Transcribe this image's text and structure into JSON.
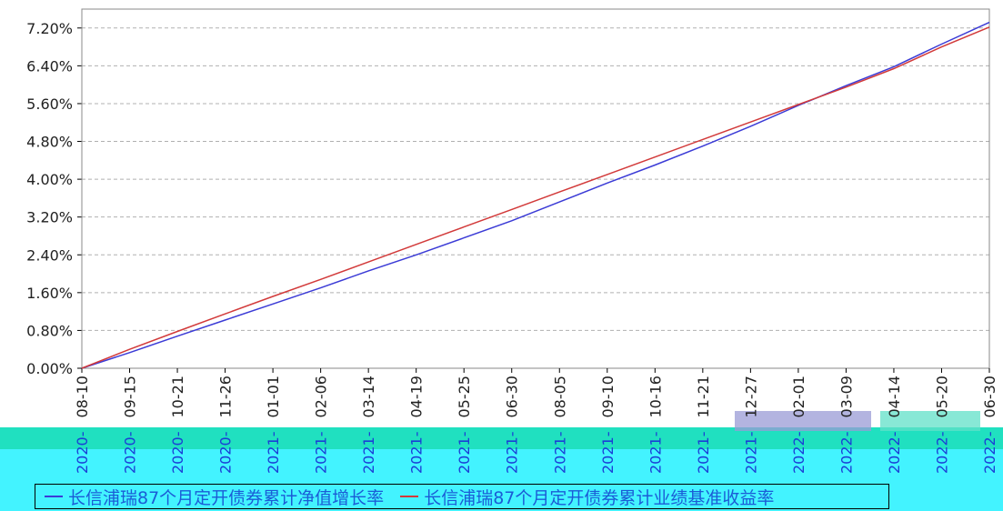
{
  "colors": {
    "series1": "#3b3bd6",
    "series2": "#d23a3a",
    "grid": "#b0b0b0",
    "axis": "#000000",
    "band": "#43f3ff",
    "legend_text": "#1b5cd6"
  },
  "chart_data": {
    "type": "line",
    "title": "",
    "xlabel": "",
    "ylabel": "",
    "ylim": [
      0,
      7.6
    ],
    "y_ticks": [
      "0.00%",
      "0.80%",
      "1.60%",
      "2.40%",
      "3.20%",
      "4.00%",
      "4.80%",
      "5.60%",
      "6.40%",
      "7.20%"
    ],
    "y_tick_values": [
      0,
      0.8,
      1.6,
      2.4,
      3.2,
      4.0,
      4.8,
      5.6,
      6.4,
      7.2
    ],
    "x_tick_labels": [
      "08-10",
      "09-15",
      "10-21",
      "11-26",
      "01-01",
      "02-06",
      "03-14",
      "04-19",
      "05-25",
      "06-30",
      "08-05",
      "09-10",
      "10-16",
      "11-21",
      "12-27",
      "02-01",
      "03-09",
      "04-14",
      "05-20",
      "06-30"
    ],
    "x_tick_year_labels": [
      "2020-",
      "2020-",
      "2020-",
      "2020-",
      "2021-",
      "2021-",
      "2021-",
      "2021-",
      "2021-",
      "2021-",
      "2021-",
      "2021-",
      "2021-",
      "2021-",
      "2021-",
      "2022-",
      "2022-",
      "2022-",
      "2022-",
      "2022-"
    ],
    "grid": true,
    "legend_placement": "bottom",
    "series": [
      {
        "name": "长信浦瑞87个月定开债券累计净值增长率",
        "color_key": "series1",
        "x": [
          0,
          1,
          2,
          3,
          4,
          5,
          6,
          7,
          8,
          9,
          10,
          11,
          12,
          13,
          14,
          15,
          16,
          17,
          18,
          19
        ],
        "values": [
          0.0,
          0.33,
          0.68,
          1.02,
          1.36,
          1.7,
          2.06,
          2.4,
          2.76,
          3.12,
          3.52,
          3.92,
          4.3,
          4.7,
          5.12,
          5.56,
          5.98,
          6.38,
          6.86,
          7.32
        ]
      },
      {
        "name": "长信浦瑞87个月定开债券累计业绩基准收益率",
        "color_key": "series2",
        "x": [
          0,
          1,
          2,
          3,
          4,
          5,
          6,
          7,
          8,
          9,
          10,
          11,
          12,
          13,
          14,
          15,
          16,
          17,
          18,
          19
        ],
        "values": [
          0.0,
          0.4,
          0.78,
          1.15,
          1.52,
          1.88,
          2.25,
          2.62,
          2.99,
          3.36,
          3.73,
          4.1,
          4.47,
          4.84,
          5.21,
          5.58,
          5.95,
          6.34,
          6.8,
          7.22
        ]
      }
    ]
  }
}
